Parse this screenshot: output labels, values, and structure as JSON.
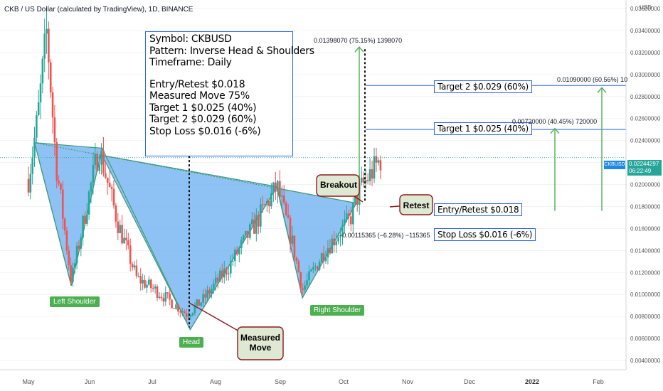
{
  "header": {
    "title": "CKB / US Dollar (calculated by TradingView), 1D, BINANCE"
  },
  "info_box": {
    "lines": [
      "Symbol: CKBUSD",
      "Pattern: Inverse Head & Shoulders",
      "Timeframe:  Daily",
      "Entry/Retest $0.018",
      "Measured Move 75%",
      "Target 1 $0.025 (40%)",
      "Target 2 $0.029 (60%)",
      "Stop Loss $0.016 (-6%)"
    ]
  },
  "levels": {
    "target2": "Target 2  $0.029 (60%)",
    "target1": "Target 1 $0.025 (40%)",
    "entry": "Entry/Retest $0.018",
    "stop": "Stop Loss $0.016 (-6%)"
  },
  "measures": {
    "mm_top": "0.01398070 (75.15%) 1398070",
    "t2": "0.01090000 (60.56%) 10",
    "t1": "0.00720000 (40.45%) 720000",
    "stop": "−0.00115365 (−6.28%) −115365"
  },
  "pattern_labels": {
    "left": "Left Shoulder",
    "head": "Head",
    "right": "Right Shoulder"
  },
  "callouts": {
    "breakout": "Breakout",
    "retest": "Retest",
    "measured_line1": "Measured",
    "measured_line2": "Move"
  },
  "price_axis": {
    "currency": "USD",
    "symbol_tag": "CKBUSD",
    "last_price": "0.02244297",
    "countdown": "06:22:49"
  },
  "colors": {
    "up": "#26a69a",
    "down": "#ef5350",
    "pattern_fill": "#6aaef0",
    "level_line": "#2962ff",
    "arrow": "#4caf50",
    "callout_fill": "#dfe8d2",
    "callout_border": "#8b1a1a"
  },
  "chart_data": {
    "type": "candlestick",
    "title": "CKB / US Dollar (calculated by TradingView), 1D, BINANCE",
    "x_ticks": [
      "May",
      "Jun",
      "Jul",
      "Aug",
      "Sep",
      "Oct",
      "Nov",
      "Dec",
      "2022",
      "Feb"
    ],
    "y_ticks": [
      "0.03600000",
      "0.03400000",
      "0.03200000",
      "0.03000000",
      "0.02800000",
      "0.02600000",
      "0.02400000",
      "0.02200000",
      "0.02000000",
      "0.01800000",
      "0.01600000",
      "0.01400000",
      "0.01200000",
      "0.01000000",
      "0.00800000",
      "0.00600000",
      "0.00400000"
    ],
    "y_range": [
      0.004,
      0.036
    ],
    "pattern": "Inverse Head & Shoulders",
    "pattern_points": [
      {
        "label": "start",
        "x_month": "May",
        "price": 0.0238
      },
      {
        "label": "Left Shoulder",
        "x_month": "May",
        "price": 0.0108
      },
      {
        "label": "Jun high",
        "x_month": "Jun",
        "price": 0.0233
      },
      {
        "label": "Head",
        "x_month": "Jul",
        "price": 0.0068
      },
      {
        "label": "Sep high",
        "x_month": "Sep",
        "price": 0.0198
      },
      {
        "label": "Right Shoulder",
        "x_month": "Sep",
        "price": 0.0097
      },
      {
        "label": "Breakout",
        "x_month": "Oct",
        "price": 0.0183
      }
    ],
    "levels": [
      {
        "name": "Target 2",
        "price": 0.029
      },
      {
        "name": "Target 1",
        "price": 0.025
      },
      {
        "name": "Entry/Retest",
        "price": 0.018
      },
      {
        "name": "Stop Loss",
        "price": 0.016
      }
    ],
    "last_price": 0.02244297
  }
}
